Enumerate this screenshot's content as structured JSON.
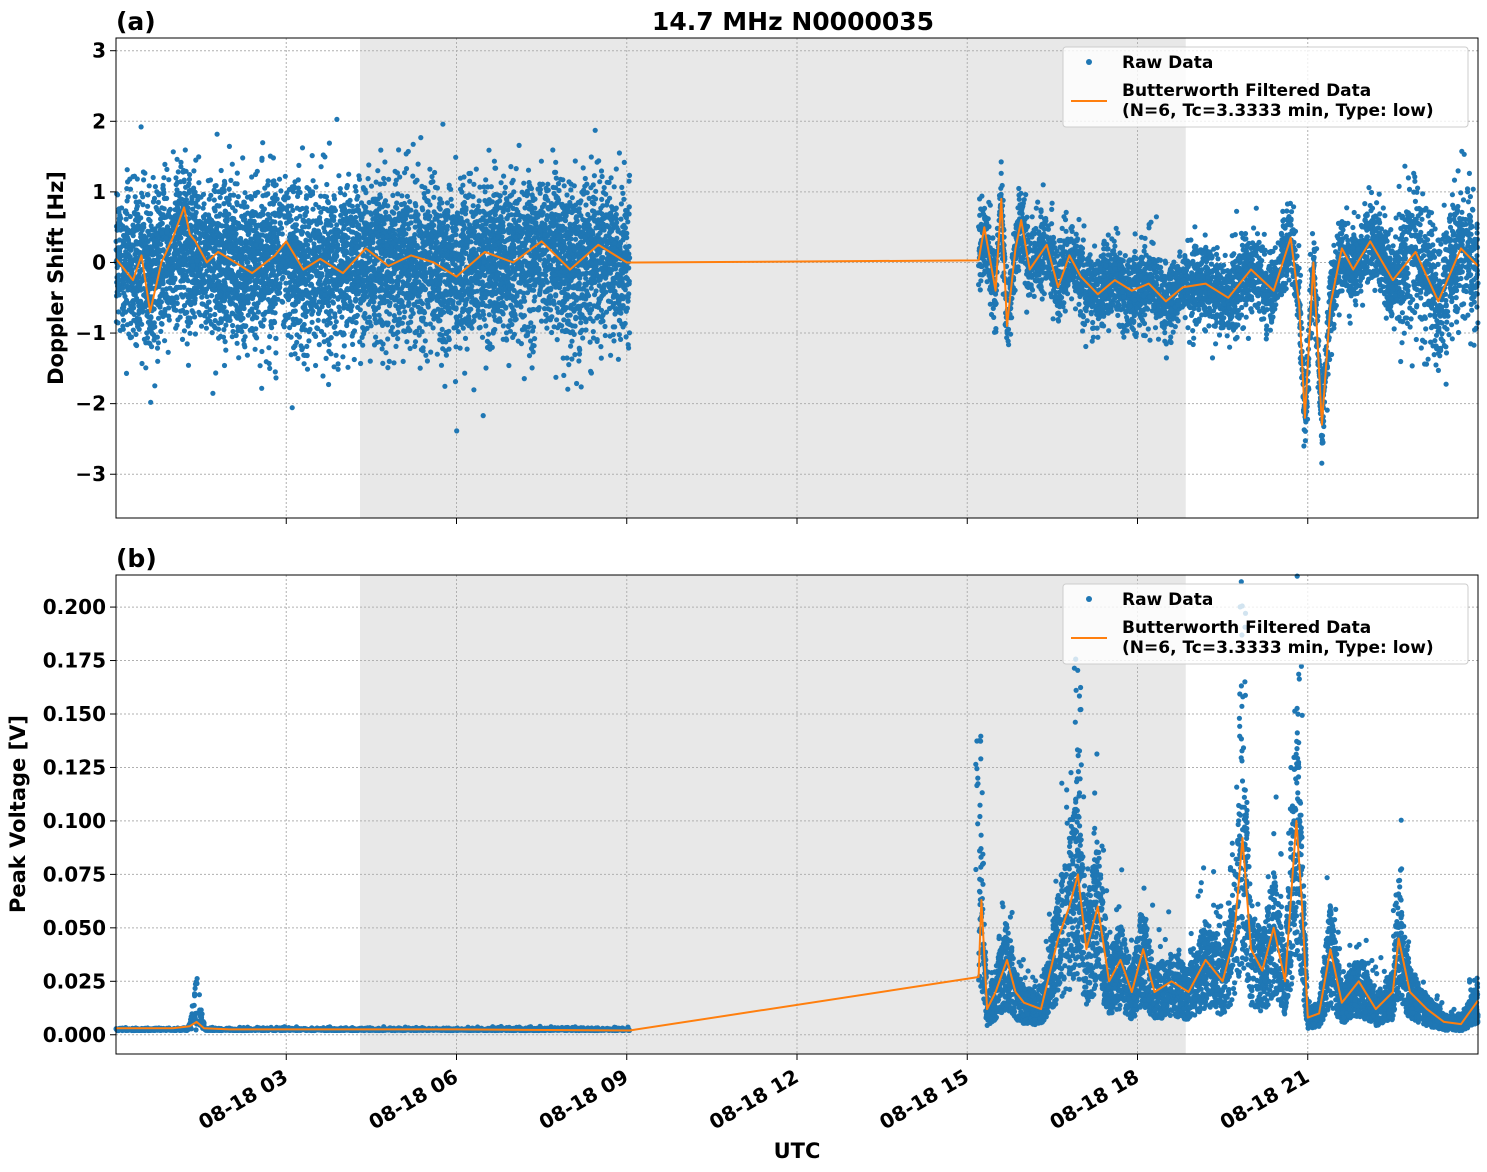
{
  "figure": {
    "title": "14.7 MHz N0000035",
    "xlabel": "UTC",
    "colors": {
      "raw": "#1f77b4",
      "filtered": "#ff7f0e",
      "shade": "#e8e8e8",
      "grid": "#b0b0b0"
    }
  },
  "chart_data": [
    {
      "type": "scatter",
      "panel_label": "(a)",
      "title": "14.7 MHz N0000035",
      "xlabel": "",
      "ylabel": "Doppler Shift [Hz]",
      "x_unit": "UTC hours since 08-18 00:00",
      "xlim": [
        0.0,
        24.0
      ],
      "ylim": [
        -3.62,
        3.18
      ],
      "yticks": [
        3,
        2,
        1,
        0,
        -1,
        -2,
        -3
      ],
      "ytick_labels": [
        "3",
        "2",
        "1",
        "0",
        "−1",
        "−2",
        "−3"
      ],
      "xticks": [
        3,
        6,
        9,
        12,
        15,
        18,
        21
      ],
      "xtick_labels": [],
      "grid": true,
      "shaded_region": [
        4.3,
        18.85
      ],
      "legend": {
        "placement": "upper right",
        "entries": [
          "Raw Data",
          "Butterworth Filtered Data\n(N=6, Tc=3.3333 min, Type: low)"
        ]
      },
      "series": [
        {
          "name": "Raw Data",
          "kind": "scatter",
          "color": "#1f77b4",
          "segments": [
            {
              "x_range": [
                0.0,
                9.05
              ],
              "center": 0.0,
              "spread_range": [
                -1.6,
                1.3
              ],
              "extremes": [
                -2.55,
                2.87
              ]
            },
            {
              "x_range": [
                15.2,
                24.0
              ],
              "center": -0.25,
              "spread_range": [
                -0.9,
                0.5
              ],
              "extremes": [
                -3.33,
                2.12
              ]
            }
          ]
        },
        {
          "name": "Butterworth Filtered Data\n(N=6, Tc=3.3333 min, Type: low)",
          "kind": "line",
          "color": "#ff7f0e",
          "x": [
            0.0,
            0.3,
            0.45,
            0.6,
            0.8,
            1.0,
            1.2,
            1.3,
            1.4,
            1.6,
            1.8,
            2.0,
            2.4,
            2.8,
            3.0,
            3.3,
            3.6,
            4.0,
            4.4,
            4.8,
            5.2,
            5.6,
            6.0,
            6.5,
            7.0,
            7.5,
            8.0,
            8.5,
            9.0,
            9.05,
            15.2,
            15.3,
            15.5,
            15.6,
            15.7,
            15.85,
            15.95,
            16.1,
            16.4,
            16.6,
            16.8,
            17.0,
            17.3,
            17.6,
            17.9,
            18.2,
            18.5,
            18.8,
            19.2,
            19.6,
            20.0,
            20.4,
            20.7,
            20.85,
            20.95,
            21.1,
            21.25,
            21.4,
            21.6,
            21.8,
            22.1,
            22.5,
            22.9,
            23.3,
            23.7,
            24.0
          ],
          "y": [
            0.05,
            -0.25,
            0.1,
            -0.7,
            0.0,
            0.35,
            0.78,
            0.4,
            0.3,
            0.0,
            0.15,
            0.05,
            -0.15,
            0.1,
            0.3,
            -0.1,
            0.05,
            -0.15,
            0.2,
            -0.05,
            0.1,
            0.0,
            -0.2,
            0.15,
            0.0,
            0.3,
            -0.1,
            0.25,
            0.0,
            0.0,
            0.03,
            0.5,
            -0.4,
            0.9,
            -0.9,
            0.2,
            0.6,
            -0.1,
            0.25,
            -0.35,
            0.1,
            -0.2,
            -0.45,
            -0.25,
            -0.4,
            -0.3,
            -0.55,
            -0.35,
            -0.3,
            -0.5,
            -0.1,
            -0.4,
            0.35,
            -0.6,
            -2.2,
            0.0,
            -2.3,
            -0.6,
            0.2,
            -0.1,
            0.3,
            -0.25,
            0.15,
            -0.55,
            0.2,
            -0.05
          ]
        }
      ]
    },
    {
      "type": "scatter",
      "panel_label": "(b)",
      "title": "",
      "xlabel": "UTC",
      "ylabel": "Peak Voltage [V]",
      "x_unit": "UTC hours since 08-18 00:00",
      "xlim": [
        0.0,
        24.0
      ],
      "ylim": [
        -0.009,
        0.215
      ],
      "yticks": [
        0.2,
        0.175,
        0.15,
        0.125,
        0.1,
        0.075,
        0.05,
        0.025,
        0.0
      ],
      "ytick_labels": [
        "0.200",
        "0.175",
        "0.150",
        "0.125",
        "0.100",
        "0.075",
        "0.050",
        "0.025",
        "0.000"
      ],
      "xticks": [
        3,
        6,
        9,
        12,
        15,
        18,
        21
      ],
      "xtick_labels": [
        "08-18 03",
        "08-18 06",
        "08-18 09",
        "08-18 12",
        "08-18 15",
        "08-18 18",
        "08-18 21"
      ],
      "grid": true,
      "shaded_region": [
        4.3,
        18.85
      ],
      "legend": {
        "placement": "upper right",
        "entries": [
          "Raw Data",
          "Butterworth Filtered Data\n(N=6, Tc=3.3333 min, Type: low)"
        ]
      },
      "series": [
        {
          "name": "Raw Data",
          "kind": "scatter",
          "color": "#1f77b4",
          "segments": [
            {
              "x_range": [
                0.0,
                9.05
              ],
              "baseline": 0.002,
              "bump": {
                "x": 1.42,
                "max": 0.027
              }
            },
            {
              "x_range": [
                15.2,
                24.0
              ],
              "peaks": [
                [
                  15.2,
                  0.145
                ],
                [
                  16.95,
                  0.185
                ],
                [
                  19.85,
                  0.205
                ],
                [
                  20.85,
                  0.175
                ],
                [
                  22.6,
                  0.078
                ]
              ]
            }
          ]
        },
        {
          "name": "Butterworth Filtered Data\n(N=6, Tc=3.3333 min, Type: low)",
          "kind": "line",
          "color": "#ff7f0e",
          "x": [
            0.0,
            1.0,
            1.3,
            1.42,
            1.55,
            2.0,
            4.0,
            6.0,
            9.05,
            15.2,
            15.25,
            15.35,
            15.5,
            15.7,
            15.85,
            16.0,
            16.3,
            16.6,
            16.8,
            16.95,
            17.1,
            17.3,
            17.5,
            17.7,
            17.9,
            18.1,
            18.3,
            18.6,
            18.9,
            19.2,
            19.5,
            19.7,
            19.85,
            20.0,
            20.2,
            20.4,
            20.6,
            20.8,
            20.9,
            21.0,
            21.2,
            21.4,
            21.6,
            21.9,
            22.2,
            22.5,
            22.6,
            22.8,
            23.1,
            23.4,
            23.7,
            24.0
          ],
          "y": [
            0.003,
            0.003,
            0.004,
            0.006,
            0.003,
            0.0025,
            0.0025,
            0.0025,
            0.002,
            0.027,
            0.063,
            0.012,
            0.02,
            0.035,
            0.02,
            0.015,
            0.012,
            0.045,
            0.06,
            0.075,
            0.04,
            0.06,
            0.025,
            0.035,
            0.02,
            0.04,
            0.02,
            0.025,
            0.02,
            0.035,
            0.025,
            0.045,
            0.092,
            0.04,
            0.03,
            0.05,
            0.025,
            0.1,
            0.06,
            0.008,
            0.01,
            0.04,
            0.015,
            0.025,
            0.012,
            0.02,
            0.045,
            0.02,
            0.012,
            0.006,
            0.005,
            0.016
          ]
        }
      ]
    }
  ]
}
